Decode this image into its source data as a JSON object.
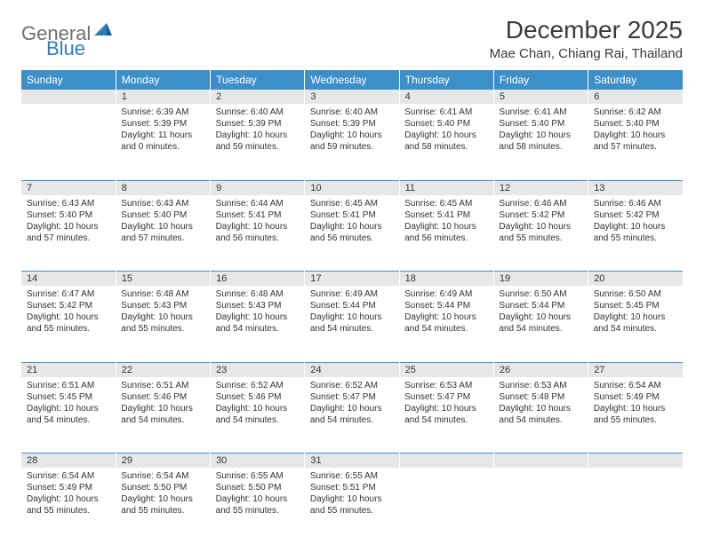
{
  "logo": {
    "part1": "General",
    "part2": "Blue"
  },
  "title": "December 2025",
  "location": "Mae Chan, Chiang Rai, Thailand",
  "colors": {
    "header_bg": "#3d8fc9",
    "header_text": "#ffffff",
    "daynum_bg": "#e7e7e7",
    "rule": "#3d8fc9",
    "logo_gray": "#6e6e6e",
    "logo_blue": "#2f7bbf",
    "body_text": "#333333",
    "page_bg": "#ffffff"
  },
  "weekdays": [
    "Sunday",
    "Monday",
    "Tuesday",
    "Wednesday",
    "Thursday",
    "Friday",
    "Saturday"
  ],
  "weeks": [
    [
      null,
      {
        "n": "1",
        "sr": "Sunrise: 6:39 AM",
        "ss": "Sunset: 5:39 PM",
        "dl": "Daylight: 11 hours and 0 minutes."
      },
      {
        "n": "2",
        "sr": "Sunrise: 6:40 AM",
        "ss": "Sunset: 5:39 PM",
        "dl": "Daylight: 10 hours and 59 minutes."
      },
      {
        "n": "3",
        "sr": "Sunrise: 6:40 AM",
        "ss": "Sunset: 5:39 PM",
        "dl": "Daylight: 10 hours and 59 minutes."
      },
      {
        "n": "4",
        "sr": "Sunrise: 6:41 AM",
        "ss": "Sunset: 5:40 PM",
        "dl": "Daylight: 10 hours and 58 minutes."
      },
      {
        "n": "5",
        "sr": "Sunrise: 6:41 AM",
        "ss": "Sunset: 5:40 PM",
        "dl": "Daylight: 10 hours and 58 minutes."
      },
      {
        "n": "6",
        "sr": "Sunrise: 6:42 AM",
        "ss": "Sunset: 5:40 PM",
        "dl": "Daylight: 10 hours and 57 minutes."
      }
    ],
    [
      {
        "n": "7",
        "sr": "Sunrise: 6:43 AM",
        "ss": "Sunset: 5:40 PM",
        "dl": "Daylight: 10 hours and 57 minutes."
      },
      {
        "n": "8",
        "sr": "Sunrise: 6:43 AM",
        "ss": "Sunset: 5:40 PM",
        "dl": "Daylight: 10 hours and 57 minutes."
      },
      {
        "n": "9",
        "sr": "Sunrise: 6:44 AM",
        "ss": "Sunset: 5:41 PM",
        "dl": "Daylight: 10 hours and 56 minutes."
      },
      {
        "n": "10",
        "sr": "Sunrise: 6:45 AM",
        "ss": "Sunset: 5:41 PM",
        "dl": "Daylight: 10 hours and 56 minutes."
      },
      {
        "n": "11",
        "sr": "Sunrise: 6:45 AM",
        "ss": "Sunset: 5:41 PM",
        "dl": "Daylight: 10 hours and 56 minutes."
      },
      {
        "n": "12",
        "sr": "Sunrise: 6:46 AM",
        "ss": "Sunset: 5:42 PM",
        "dl": "Daylight: 10 hours and 55 minutes."
      },
      {
        "n": "13",
        "sr": "Sunrise: 6:46 AM",
        "ss": "Sunset: 5:42 PM",
        "dl": "Daylight: 10 hours and 55 minutes."
      }
    ],
    [
      {
        "n": "14",
        "sr": "Sunrise: 6:47 AM",
        "ss": "Sunset: 5:42 PM",
        "dl": "Daylight: 10 hours and 55 minutes."
      },
      {
        "n": "15",
        "sr": "Sunrise: 6:48 AM",
        "ss": "Sunset: 5:43 PM",
        "dl": "Daylight: 10 hours and 55 minutes."
      },
      {
        "n": "16",
        "sr": "Sunrise: 6:48 AM",
        "ss": "Sunset: 5:43 PM",
        "dl": "Daylight: 10 hours and 54 minutes."
      },
      {
        "n": "17",
        "sr": "Sunrise: 6:49 AM",
        "ss": "Sunset: 5:44 PM",
        "dl": "Daylight: 10 hours and 54 minutes."
      },
      {
        "n": "18",
        "sr": "Sunrise: 6:49 AM",
        "ss": "Sunset: 5:44 PM",
        "dl": "Daylight: 10 hours and 54 minutes."
      },
      {
        "n": "19",
        "sr": "Sunrise: 6:50 AM",
        "ss": "Sunset: 5:44 PM",
        "dl": "Daylight: 10 hours and 54 minutes."
      },
      {
        "n": "20",
        "sr": "Sunrise: 6:50 AM",
        "ss": "Sunset: 5:45 PM",
        "dl": "Daylight: 10 hours and 54 minutes."
      }
    ],
    [
      {
        "n": "21",
        "sr": "Sunrise: 6:51 AM",
        "ss": "Sunset: 5:45 PM",
        "dl": "Daylight: 10 hours and 54 minutes."
      },
      {
        "n": "22",
        "sr": "Sunrise: 6:51 AM",
        "ss": "Sunset: 5:46 PM",
        "dl": "Daylight: 10 hours and 54 minutes."
      },
      {
        "n": "23",
        "sr": "Sunrise: 6:52 AM",
        "ss": "Sunset: 5:46 PM",
        "dl": "Daylight: 10 hours and 54 minutes."
      },
      {
        "n": "24",
        "sr": "Sunrise: 6:52 AM",
        "ss": "Sunset: 5:47 PM",
        "dl": "Daylight: 10 hours and 54 minutes."
      },
      {
        "n": "25",
        "sr": "Sunrise: 6:53 AM",
        "ss": "Sunset: 5:47 PM",
        "dl": "Daylight: 10 hours and 54 minutes."
      },
      {
        "n": "26",
        "sr": "Sunrise: 6:53 AM",
        "ss": "Sunset: 5:48 PM",
        "dl": "Daylight: 10 hours and 54 minutes."
      },
      {
        "n": "27",
        "sr": "Sunrise: 6:54 AM",
        "ss": "Sunset: 5:49 PM",
        "dl": "Daylight: 10 hours and 55 minutes."
      }
    ],
    [
      {
        "n": "28",
        "sr": "Sunrise: 6:54 AM",
        "ss": "Sunset: 5:49 PM",
        "dl": "Daylight: 10 hours and 55 minutes."
      },
      {
        "n": "29",
        "sr": "Sunrise: 6:54 AM",
        "ss": "Sunset: 5:50 PM",
        "dl": "Daylight: 10 hours and 55 minutes."
      },
      {
        "n": "30",
        "sr": "Sunrise: 6:55 AM",
        "ss": "Sunset: 5:50 PM",
        "dl": "Daylight: 10 hours and 55 minutes."
      },
      {
        "n": "31",
        "sr": "Sunrise: 6:55 AM",
        "ss": "Sunset: 5:51 PM",
        "dl": "Daylight: 10 hours and 55 minutes."
      },
      null,
      null,
      null
    ]
  ]
}
